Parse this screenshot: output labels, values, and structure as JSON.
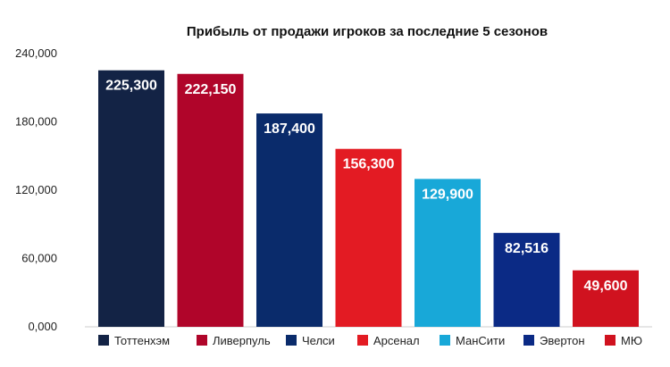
{
  "chart_data": {
    "type": "bar",
    "title": "Прибыль от продажи игроков за последние 5 сезонов",
    "xlabel": "",
    "ylabel": "",
    "ylim": [
      0,
      240000
    ],
    "yticks": [
      "0,000",
      "60,000",
      "120,000",
      "180,000",
      "240,000"
    ],
    "grid": false,
    "legend_position": "bottom",
    "categories": [
      "Тоттенхэм",
      "Ливерпуль",
      "Челси",
      "Арсенал",
      "МанСити",
      "Эвертон",
      "МЮ"
    ],
    "values": [
      225300,
      222150,
      187400,
      156300,
      129900,
      82516,
      49600
    ],
    "data_labels": [
      "225,300",
      "222,150",
      "187,400",
      "156,300",
      "129,900",
      "82,516",
      "49,600"
    ],
    "colors": [
      "#132345",
      "#B0052A",
      "#0A2B6B",
      "#E31B23",
      "#18A8D8",
      "#0B2A85",
      "#D0121F"
    ]
  }
}
